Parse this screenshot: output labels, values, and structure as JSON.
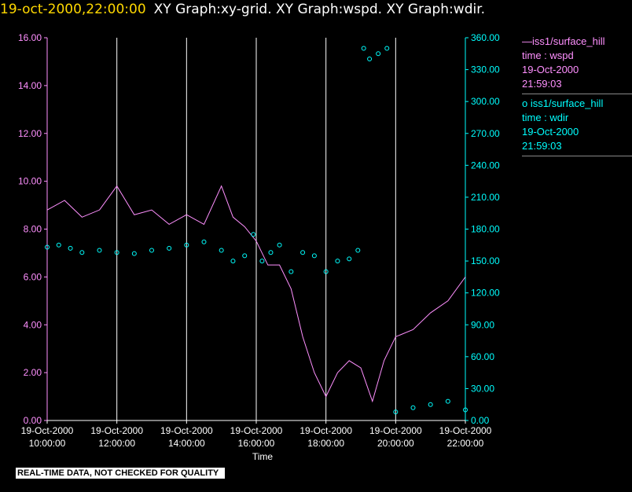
{
  "header": {
    "date": "19-oct-2000,22:00:00",
    "titles": "XY Graph:xy-grid.  XY Graph:wspd.  XY Graph:wdir."
  },
  "colors": {
    "wspd": "#ff90ff",
    "wdir": "#00ffff",
    "grid": "#ffffff"
  },
  "legend": {
    "wspd": {
      "name": "iss1/surface_hill",
      "var": "time : wspd",
      "date": "19-Oct-2000",
      "time": "21:59:03"
    },
    "wdir": {
      "name": "iss1/surface_hill",
      "var": "time : wdir",
      "date": "19-Oct-2000",
      "time": "21:59:03"
    }
  },
  "banner": "REAL-TIME DATA, NOT CHECKED FOR QUALITY",
  "chart_data": {
    "type": "line",
    "xlabel": "Time",
    "x_ticks": [
      {
        "date": "19-Oct-2000",
        "time": "10:00:00"
      },
      {
        "date": "19-Oct-2000",
        "time": "12:00:00"
      },
      {
        "date": "19-Oct-2000",
        "time": "14:00:00"
      },
      {
        "date": "19-Oct-2000",
        "time": "16:00:00"
      },
      {
        "date": "19-Oct-2000",
        "time": "18:00:00"
      },
      {
        "date": "19-Oct-2000",
        "time": "20:00:00"
      },
      {
        "date": "19-Oct-2000",
        "time": "22:00:00"
      }
    ],
    "xlim": [
      "10:00:00",
      "22:00:00"
    ],
    "y_left": {
      "ylim": [
        0,
        16
      ],
      "ticks": [
        "0.00",
        "2.00",
        "4.00",
        "6.00",
        "8.00",
        "10.00",
        "12.00",
        "14.00",
        "16.00"
      ]
    },
    "y_right": {
      "ylim": [
        0,
        360
      ],
      "ticks": [
        "0.00",
        "30.00",
        "60.00",
        "90.00",
        "120.00",
        "150.00",
        "180.00",
        "210.00",
        "240.00",
        "270.00",
        "300.00",
        "330.00",
        "360.00"
      ]
    },
    "vertical_grid": true,
    "series": [
      {
        "name": "iss1/surface_hill",
        "variable": "wspd",
        "axis": "left",
        "style": "line",
        "x": [
          "10:00",
          "10:30",
          "11:00",
          "11:30",
          "12:00",
          "12:30",
          "13:00",
          "13:30",
          "14:00",
          "14:30",
          "15:00",
          "15:20",
          "15:40",
          "16:00",
          "16:20",
          "16:40",
          "17:00",
          "17:20",
          "17:40",
          "18:00",
          "18:20",
          "18:40",
          "19:00",
          "19:20",
          "19:40",
          "20:00",
          "20:30",
          "21:00",
          "21:30",
          "22:00"
        ],
        "y": [
          8.8,
          9.2,
          8.5,
          8.8,
          9.8,
          8.6,
          8.8,
          8.2,
          8.6,
          8.2,
          9.8,
          8.5,
          8.1,
          7.5,
          6.5,
          6.5,
          5.5,
          3.5,
          2.0,
          1.0,
          2.0,
          2.5,
          2.2,
          0.8,
          2.5,
          3.5,
          3.8,
          4.5,
          5.0,
          6.0
        ]
      },
      {
        "name": "iss1/surface_hill",
        "variable": "wdir",
        "axis": "right",
        "style": "markers",
        "x": [
          "10:00",
          "10:20",
          "10:40",
          "11:00",
          "11:30",
          "12:00",
          "12:30",
          "13:00",
          "13:30",
          "14:00",
          "14:30",
          "15:00",
          "15:20",
          "15:40",
          "15:55",
          "16:10",
          "16:25",
          "16:40",
          "17:00",
          "17:20",
          "17:40",
          "18:00",
          "18:20",
          "18:40",
          "18:55",
          "19:05",
          "19:15",
          "19:30",
          "19:45",
          "20:00",
          "20:30",
          "21:00",
          "21:30",
          "22:00"
        ],
        "y": [
          163,
          165,
          162,
          158,
          160,
          158,
          157,
          160,
          162,
          165,
          168,
          160,
          150,
          155,
          175,
          150,
          158,
          165,
          140,
          158,
          155,
          140,
          150,
          152,
          160,
          350,
          340,
          345,
          350,
          8,
          12,
          15,
          18,
          10
        ]
      }
    ]
  }
}
